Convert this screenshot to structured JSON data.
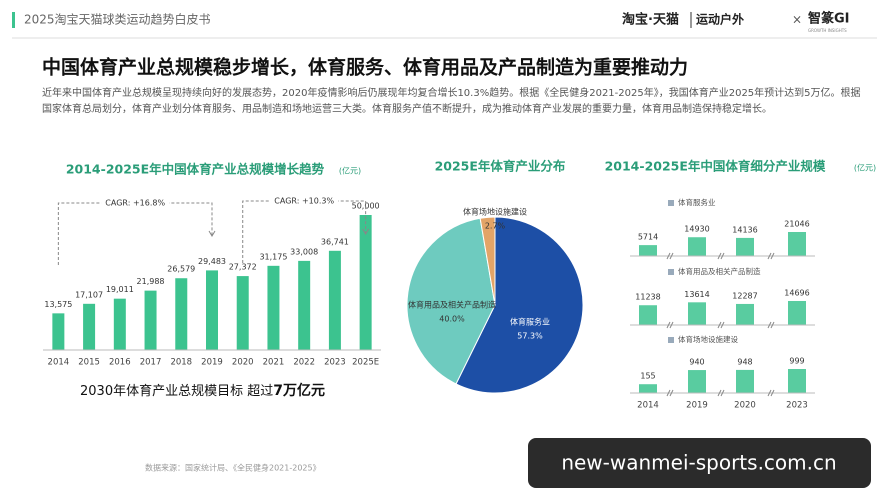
{
  "header": {
    "title": "2025淘宝天猫球类运动趋势白皮书",
    "brand": "淘宝·天猫",
    "channel": "运动户外",
    "times": "×",
    "partner": "智篆GI",
    "partner_sub": "GROWTH INSIGHTS"
  },
  "headline": "中国体育产业总规模稳步增长，体育服务、体育用品及产品制造为重要推动力",
  "paragraph": "近年来中国体育产业总规模呈现持续向好的发展态势，2020年疫情影响后仍展现年均复合增长10.3%趋势。根据《全民健身2021-2025年》，我国体育产业2025年预计达到5万亿。根据国家体育总局划分，体育产业划分体育服务、用品制造和场地运营三大类。体育服务产值不断提升，成为推动体育产业发展的重要力量，体育用品制造保持稳定增长。",
  "chart_data": [
    {
      "type": "bar",
      "title": "2014-2025E年中国体育产业总规模增长趋势",
      "unit": "(亿元)",
      "categories": [
        "2014",
        "2015",
        "2016",
        "2017",
        "2018",
        "2019",
        "2020",
        "2021",
        "2022",
        "2023",
        "2025E"
      ],
      "values": [
        13575,
        17107,
        19011,
        21988,
        26579,
        29483,
        27372,
        31175,
        33008,
        36741,
        50000
      ],
      "value_labels": [
        "13,575",
        "17,107",
        "19,011",
        "21,988",
        "26,579",
        "29,483",
        "27,372",
        "31,175",
        "33,008",
        "36,741",
        "50,000"
      ],
      "color": "#3cc38f",
      "annotations": [
        "CAGR: +16.8%",
        "CAGR: +10.3%"
      ],
      "note": "2030年体育产业总规模目标 超过",
      "note_highlight": "7万亿元"
    },
    {
      "type": "pie",
      "title": "2025E年体育产业分布",
      "categories": [
        "体育服务业",
        "体育用品及相关产品制造",
        "体育场地设施建设"
      ],
      "values": [
        57.3,
        40.0,
        2.7
      ],
      "value_labels": [
        "57.3%",
        "40.0%",
        "2.7%"
      ],
      "colors": [
        "#1d4fa6",
        "#6ecbbf",
        "#e3a467"
      ]
    },
    {
      "type": "panels",
      "title": "2014-2025E年中国体育细分产业规模",
      "unit": "(亿元)",
      "categories": [
        "2014",
        "2019",
        "2020",
        "2023"
      ],
      "color": "#3cc38f",
      "series": [
        {
          "name": "体育服务业",
          "values": [
            5714,
            14930,
            14136,
            21046
          ]
        },
        {
          "name": "体育用品及相关产品制造",
          "values": [
            11238,
            13614,
            12287,
            14696
          ]
        },
        {
          "name": "体育场地设施建设",
          "values": [
            155,
            940,
            948,
            999
          ]
        }
      ]
    }
  ],
  "footnote": "数据来源：国家统计局、《全民健身2021-2025》",
  "watermark": "new-wanmei-sports.com.cn"
}
